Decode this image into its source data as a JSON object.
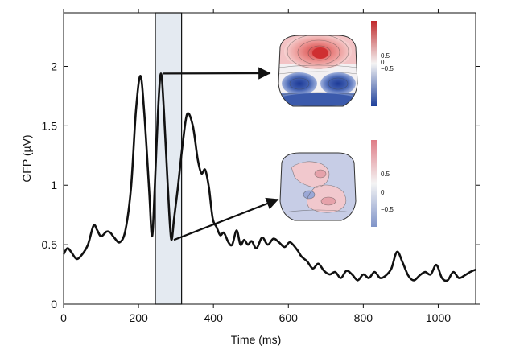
{
  "chart_data": {
    "type": "line",
    "title": "",
    "xlabel": "Time (ms)",
    "ylabel": "GFP (µV)",
    "xlim": [
      0,
      1100
    ],
    "ylim": [
      0,
      2.45
    ],
    "grid": false,
    "x_ticks": [
      0,
      200,
      400,
      600,
      800,
      1000
    ],
    "y_ticks": [
      0,
      0.5,
      1,
      1.5,
      2
    ],
    "x_tick_labels": [
      "0",
      "200",
      "400",
      "600",
      "800",
      "1000"
    ],
    "y_tick_labels": [
      "0",
      "0.5",
      "1",
      "1.5",
      "2"
    ],
    "highlight_window": {
      "x_start": 245,
      "x_end": 315
    },
    "series": [
      {
        "points": [
          [
            0,
            0.42
          ],
          [
            10,
            0.47
          ],
          [
            20,
            0.44
          ],
          [
            35,
            0.38
          ],
          [
            50,
            0.42
          ],
          [
            65,
            0.5
          ],
          [
            80,
            0.66
          ],
          [
            90,
            0.62
          ],
          [
            100,
            0.57
          ],
          [
            115,
            0.61
          ],
          [
            125,
            0.6
          ],
          [
            135,
            0.56
          ],
          [
            150,
            0.52
          ],
          [
            165,
            0.62
          ],
          [
            180,
            0.98
          ],
          [
            193,
            1.62
          ],
          [
            205,
            1.92
          ],
          [
            215,
            1.62
          ],
          [
            228,
            0.98
          ],
          [
            236,
            0.57
          ],
          [
            243,
            0.95
          ],
          [
            252,
            1.62
          ],
          [
            260,
            1.94
          ],
          [
            268,
            1.62
          ],
          [
            278,
            1.0
          ],
          [
            287,
            0.55
          ],
          [
            295,
            0.72
          ],
          [
            305,
            0.98
          ],
          [
            318,
            1.35
          ],
          [
            330,
            1.6
          ],
          [
            345,
            1.5
          ],
          [
            358,
            1.22
          ],
          [
            368,
            1.1
          ],
          [
            378,
            1.13
          ],
          [
            388,
            0.98
          ],
          [
            398,
            0.72
          ],
          [
            408,
            0.65
          ],
          [
            418,
            0.58
          ],
          [
            428,
            0.6
          ],
          [
            440,
            0.52
          ],
          [
            450,
            0.5
          ],
          [
            462,
            0.62
          ],
          [
            472,
            0.5
          ],
          [
            482,
            0.54
          ],
          [
            492,
            0.5
          ],
          [
            502,
            0.53
          ],
          [
            515,
            0.47
          ],
          [
            530,
            0.56
          ],
          [
            545,
            0.5
          ],
          [
            560,
            0.55
          ],
          [
            575,
            0.52
          ],
          [
            590,
            0.48
          ],
          [
            605,
            0.52
          ],
          [
            625,
            0.45
          ],
          [
            635,
            0.4
          ],
          [
            650,
            0.36
          ],
          [
            665,
            0.3
          ],
          [
            680,
            0.34
          ],
          [
            695,
            0.28
          ],
          [
            710,
            0.25
          ],
          [
            725,
            0.27
          ],
          [
            740,
            0.22
          ],
          [
            755,
            0.28
          ],
          [
            770,
            0.25
          ],
          [
            785,
            0.2
          ],
          [
            800,
            0.25
          ],
          [
            815,
            0.22
          ],
          [
            830,
            0.27
          ],
          [
            845,
            0.22
          ],
          [
            860,
            0.24
          ],
          [
            875,
            0.3
          ],
          [
            890,
            0.44
          ],
          [
            905,
            0.35
          ],
          [
            920,
            0.24
          ],
          [
            935,
            0.2
          ],
          [
            950,
            0.24
          ],
          [
            965,
            0.27
          ],
          [
            980,
            0.25
          ],
          [
            995,
            0.33
          ],
          [
            1010,
            0.22
          ],
          [
            1025,
            0.2
          ],
          [
            1040,
            0.27
          ],
          [
            1055,
            0.22
          ],
          [
            1070,
            0.24
          ],
          [
            1085,
            0.27
          ],
          [
            1100,
            0.29
          ]
        ]
      }
    ],
    "annotations": [
      {
        "from": [
          260,
          1.94
        ],
        "to": "topomap-upper"
      },
      {
        "from": [
          288,
          0.54
        ],
        "to": "topomap-lower"
      }
    ],
    "insets": [
      {
        "type": "topomap",
        "colorbar": {
          "tick_labels": [
            "0.5",
            "0",
            "−0.5"
          ],
          "colors": [
            "#c0282a",
            "#f4f4f4",
            "#1e3f9a"
          ]
        }
      },
      {
        "type": "topomap",
        "colorbar": {
          "tick_labels": [
            "0.5",
            "0",
            "−0.5"
          ],
          "colors": [
            "#df7c86",
            "#f4f4f4",
            "#7f93c8"
          ]
        }
      }
    ]
  }
}
